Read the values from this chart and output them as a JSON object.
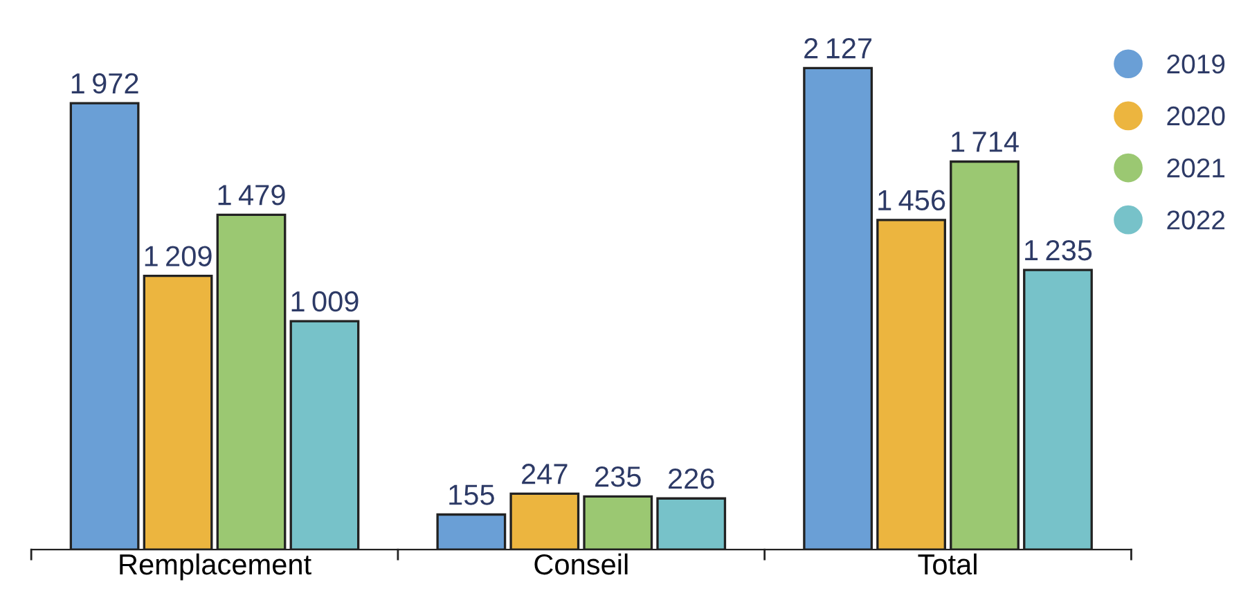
{
  "chart_data": {
    "type": "bar",
    "categories": [
      "Remplacement",
      "Conseil",
      "Total"
    ],
    "series": [
      {
        "name": "2019",
        "color": "#6a9fd6",
        "values": [
          1972,
          155,
          2127
        ]
      },
      {
        "name": "2020",
        "color": "#ecb53f",
        "values": [
          1209,
          247,
          1456
        ]
      },
      {
        "name": "2021",
        "color": "#9bc872",
        "values": [
          1479,
          235,
          1714
        ]
      },
      {
        "name": "2022",
        "color": "#77c2c9",
        "values": [
          1009,
          226,
          1235
        ]
      }
    ],
    "data_labels": true,
    "legend": "top right",
    "grid": false
  }
}
